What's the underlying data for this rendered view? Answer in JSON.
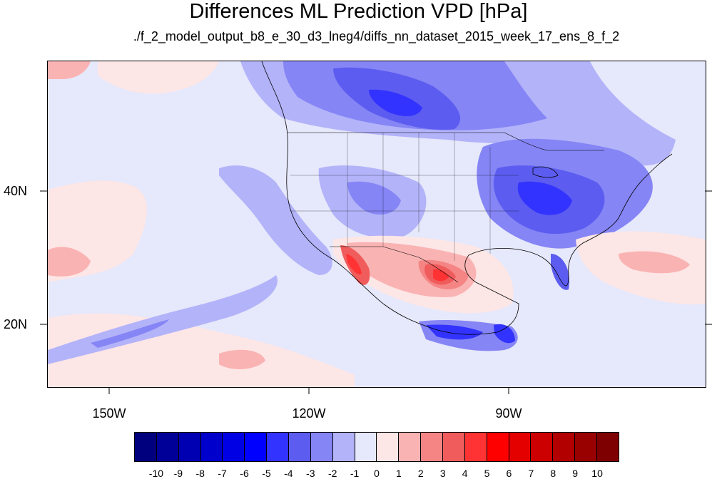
{
  "title": "Differences ML Prediction VPD [hPa]",
  "subtitle": "./f_2_model_output_b8_e_30_d3_lneg4/diffs_nn_dataset_2015_week_17_ens_8_f_2",
  "lat_labels": [
    "40N",
    "20N"
  ],
  "lon_labels": [
    "150W",
    "120W",
    "90W"
  ],
  "colorbar": {
    "labels": [
      "-10",
      "-9",
      "-8",
      "-7",
      "-6",
      "-5",
      "-4",
      "-3",
      "-2",
      "-1",
      "0",
      "1",
      "2",
      "3",
      "4",
      "5",
      "6",
      "7",
      "8",
      "9",
      "10"
    ],
    "colors": [
      "#00007f",
      "#000099",
      "#0000b2",
      "#0000cc",
      "#0000e5",
      "#0000ff",
      "#3333ff",
      "#5c5cf0",
      "#8585f5",
      "#b3b3fa",
      "#e6e8fb",
      "#fde6e6",
      "#fab3b3",
      "#f58585",
      "#f05c5c",
      "#ff3333",
      "#ff0000",
      "#e50000",
      "#cc0000",
      "#b20000",
      "#990000",
      "#7f0000"
    ]
  },
  "map": {
    "extent_lon": [
      -160,
      -61
    ],
    "extent_lat": [
      11,
      59
    ],
    "field_colors": {
      "bg": "#e6e8fb",
      "neg1": "#b3b3fa",
      "neg2": "#8585f5",
      "neg3": "#5c5cf0",
      "neg4": "#3333ff",
      "pos1": "#fde6e6",
      "pos2": "#fab3b3",
      "pos3": "#f58585",
      "pos4": "#f05c5c",
      "pos5": "#ff3333"
    }
  }
}
